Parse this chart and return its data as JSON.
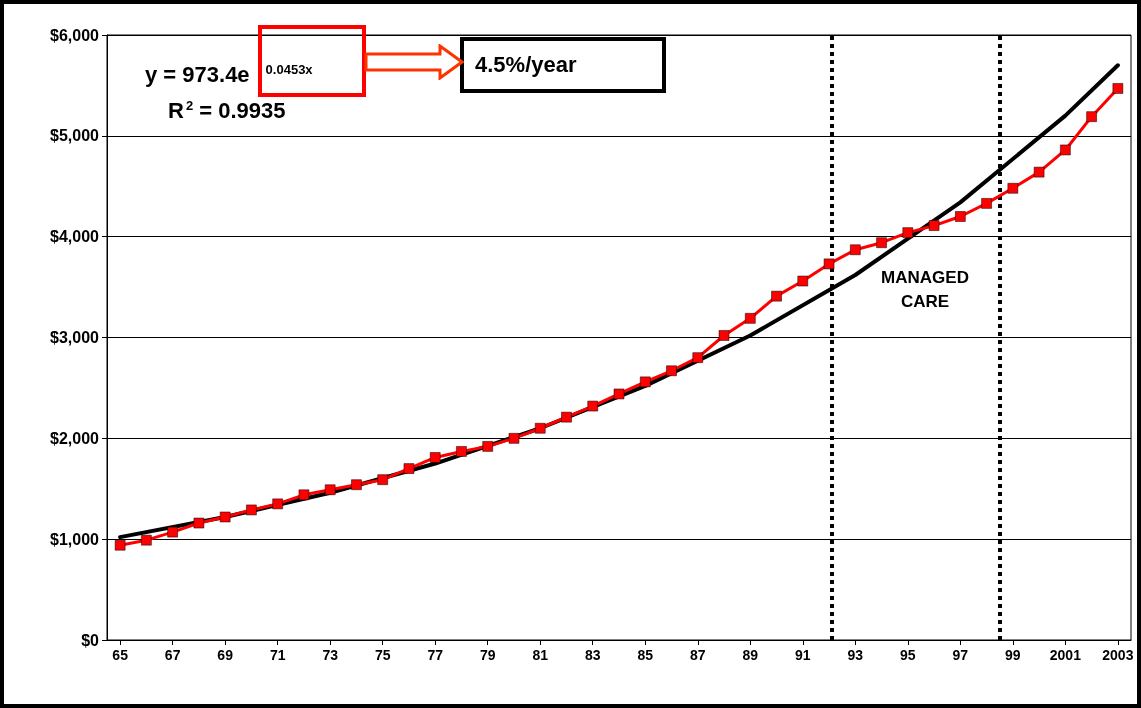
{
  "chart_data": {
    "type": "line",
    "x": [
      1965,
      1966,
      1967,
      1968,
      1969,
      1970,
      1971,
      1972,
      1973,
      1974,
      1975,
      1976,
      1977,
      1978,
      1979,
      1980,
      1981,
      1982,
      1983,
      1984,
      1985,
      1986,
      1987,
      1988,
      1989,
      1990,
      1991,
      1992,
      1993,
      1994,
      1995,
      1996,
      1997,
      1998,
      1999,
      2000,
      2001,
      2002,
      2003
    ],
    "series": [
      {
        "color": "#ff0000",
        "marker": "square",
        "values": [
          940,
          990,
          1070,
          1160,
          1220,
          1290,
          1350,
          1440,
          1490,
          1540,
          1590,
          1700,
          1810,
          1870,
          1920,
          2000,
          2100,
          2210,
          2320,
          2440,
          2560,
          2670,
          2800,
          3020,
          3190,
          3410,
          3560,
          3730,
          3870,
          3940,
          4040,
          4110,
          4200,
          4330,
          4480,
          4640,
          4860,
          5190,
          5470
        ]
      },
      {
        "color": "#000000",
        "marker": "none",
        "x": [
          1965,
          1969,
          1973,
          1977,
          1981,
          1985,
          1989,
          1993,
          1997,
          2001,
          2003
        ],
        "values": [
          1020,
          1220,
          1460,
          1750,
          2100,
          2520,
          3020,
          3620,
          4340,
          5200,
          5700
        ]
      }
    ],
    "xlim": [
      1964.5,
      2003.5
    ],
    "xticks": [
      {
        "value": 1965,
        "label": "65"
      },
      {
        "value": 1967,
        "label": "67"
      },
      {
        "value": 1969,
        "label": "69"
      },
      {
        "value": 1971,
        "label": "71"
      },
      {
        "value": 1973,
        "label": "73"
      },
      {
        "value": 1975,
        "label": "75"
      },
      {
        "value": 1977,
        "label": "77"
      },
      {
        "value": 1979,
        "label": "79"
      },
      {
        "value": 1981,
        "label": "81"
      },
      {
        "value": 1983,
        "label": "83"
      },
      {
        "value": 1985,
        "label": "85"
      },
      {
        "value": 1987,
        "label": "87"
      },
      {
        "value": 1989,
        "label": "89"
      },
      {
        "value": 1991,
        "label": "91"
      },
      {
        "value": 1993,
        "label": "93"
      },
      {
        "value": 1995,
        "label": "95"
      },
      {
        "value": 1997,
        "label": "97"
      },
      {
        "value": 1999,
        "label": "99"
      },
      {
        "value": 2001,
        "label": "2001"
      },
      {
        "value": 2003,
        "label": "2003"
      }
    ],
    "ylim": [
      0,
      6000
    ],
    "yticks": [
      {
        "value": 0,
        "label": "$0"
      },
      {
        "value": 1000,
        "label": "$1,000"
      },
      {
        "value": 2000,
        "label": "$2,000"
      },
      {
        "value": 3000,
        "label": "$3,000"
      },
      {
        "value": 4000,
        "label": "$4,000"
      },
      {
        "value": 5000,
        "label": "$5,000"
      },
      {
        "value": 6000,
        "label": "$6,000"
      }
    ],
    "grid": "y",
    "line_style": "solid",
    "ref_lines": [
      {
        "axis": "x",
        "value": 1992.1,
        "line_style": "dotted",
        "color": "#000000"
      },
      {
        "axis": "x",
        "value": 1998.5,
        "line_style": "dotted",
        "color": "#000000"
      }
    ],
    "annotations": [
      "y = 973.4e$^{0.0453x}$",
      "R$^{2}$ = 0.9935",
      "4.5%/year",
      "MANAGED CARE"
    ]
  }
}
